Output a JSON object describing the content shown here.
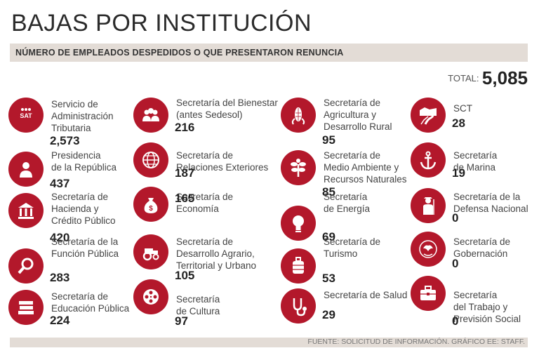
{
  "title": "BAJAS POR INSTITUCIÓN",
  "subtitle": "NÚMERO DE EMPLEADOS DESPEDIDOS O QUE PRESENTARON RENUNCIA",
  "total_label": "TOTAL:",
  "total_value": "5,085",
  "footer": "FUENTE: SOLICITUD DE INFORMACIÓN. GRÁFICO EE: STAFF.",
  "accent_color": "#b3182b",
  "items": [
    {
      "name": "Servicio de\nAdministración\nTributaria",
      "value": "2,573",
      "icon": "sat-icon"
    },
    {
      "name": "Presidencia\nde la República",
      "value": "437",
      "icon": "person-icon"
    },
    {
      "name": "Secretaría de\nHacienda y\nCrédito Público",
      "value": "420",
      "icon": "building-icon"
    },
    {
      "name": "Secretaría de la\nFunción Pública",
      "value": "283",
      "icon": "magnifier-icon"
    },
    {
      "name": "Secretaría de\nEducación Pública",
      "value": "224",
      "icon": "books-icon"
    },
    {
      "name": "Secretaría del Bienestar\n(antes Sedesol)",
      "value": "216",
      "icon": "people-icon"
    },
    {
      "name": "Secretaría de\nRelaciones Exteriores",
      "value": "187",
      "icon": "globe-icon"
    },
    {
      "name": "Secretaría de\nEconomía",
      "value": "165",
      "icon": "money-bag-icon"
    },
    {
      "name": "Secretaría de\nDesarrollo Agrario,\nTerritorial y Urbano",
      "value": "105",
      "icon": "tractor-icon"
    },
    {
      "name": "Secretaría\nde Cultura",
      "value": "97",
      "icon": "film-reel-icon"
    },
    {
      "name": "Secretaría de\nAgricultura y\nDesarrollo Rural",
      "value": "95",
      "icon": "corn-icon"
    },
    {
      "name": "Secretaría de\nMedio Ambiente y\nRecursos Naturales",
      "value": "85",
      "icon": "plant-icon"
    },
    {
      "name": "Secretaría\nde Energía",
      "value": "69",
      "icon": "lightbulb-icon"
    },
    {
      "name": "Secretaría de\nTurismo",
      "value": "53",
      "icon": "suitcase-icon"
    },
    {
      "name": "Secretaría de Salud",
      "value": "29",
      "icon": "stethoscope-icon"
    },
    {
      "name": "SCT",
      "value": "28",
      "icon": "road-icon"
    },
    {
      "name": "Secretaría\nde Marina",
      "value": "19",
      "icon": "anchor-icon"
    },
    {
      "name": "Secretaría de la\nDefensa Nacional",
      "value": "0",
      "icon": "soldier-icon"
    },
    {
      "name": "Secretaría de\nGobernación",
      "value": "0",
      "icon": "eagle-seal-icon"
    },
    {
      "name": "Secretaría\ndel Trabajo y\nPrevisión Social",
      "value": "0",
      "icon": "toolbox-icon"
    }
  ],
  "chart_data": {
    "type": "table",
    "title": "BAJAS POR INSTITUCIÓN",
    "subtitle": "NÚMERO DE EMPLEADOS DESPEDIDOS O QUE PRESENTARON RENUNCIA",
    "total": 5085,
    "categories": [
      "Servicio de Administración Tributaria",
      "Presidencia de la República",
      "Secretaría de Hacienda y Crédito Público",
      "Secretaría de la Función Pública",
      "Secretaría de Educación Pública",
      "Secretaría del Bienestar (antes Sedesol)",
      "Secretaría de Relaciones Exteriores",
      "Secretaría de Economía",
      "Secretaría de Desarrollo Agrario, Territorial y Urbano",
      "Secretaría de Cultura",
      "Secretaría de Agricultura y Desarrollo Rural",
      "Secretaría de Medio Ambiente y Recursos Naturales",
      "Secretaría de Energía",
      "Secretaría de Turismo",
      "Secretaría de Salud",
      "SCT",
      "Secretaría de Marina",
      "Secretaría de la Defensa Nacional",
      "Secretaría de Gobernación",
      "Secretaría del Trabajo y Previsión Social"
    ],
    "values": [
      2573,
      437,
      420,
      283,
      224,
      216,
      187,
      165,
      105,
      97,
      95,
      85,
      69,
      53,
      29,
      28,
      19,
      0,
      0,
      0
    ]
  }
}
